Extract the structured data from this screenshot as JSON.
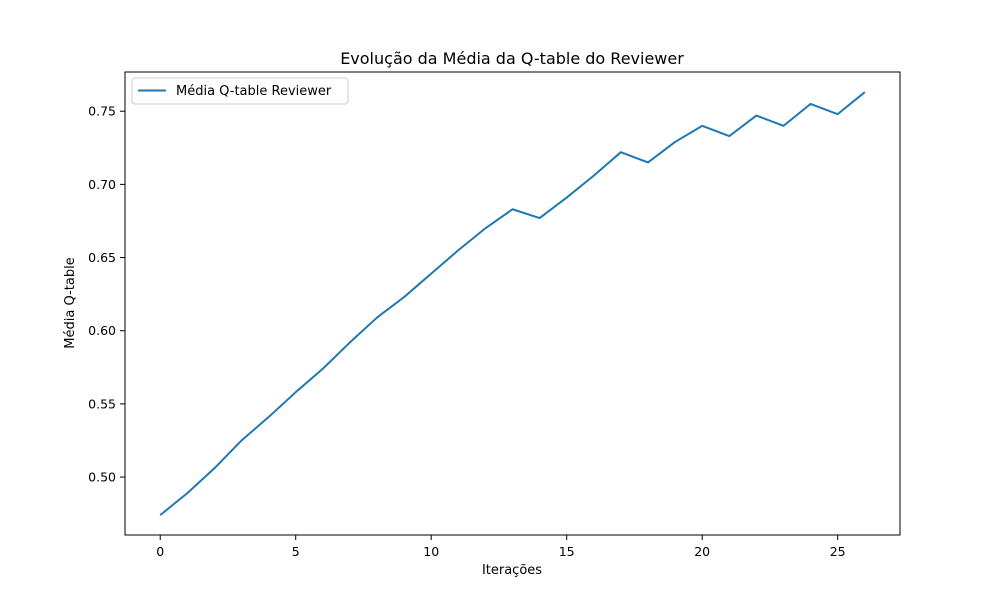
{
  "chart_data": {
    "type": "line",
    "title": "Evolução da Média da Q-table do Reviewer",
    "xlabel": "Iterações",
    "ylabel": "Média Q-table",
    "xlim": [
      -1.3,
      27.3
    ],
    "ylim": [
      0.4604,
      0.7768
    ],
    "x_ticks": [
      0,
      5,
      10,
      15,
      20,
      25
    ],
    "x_tick_labels": [
      "0",
      "5",
      "10",
      "15",
      "20",
      "25"
    ],
    "y_ticks": [
      0.5,
      0.55,
      0.6,
      0.65,
      0.7,
      0.75
    ],
    "y_tick_labels": [
      "0.50",
      "0.55",
      "0.60",
      "0.65",
      "0.70",
      "0.75"
    ],
    "grid": false,
    "legend_position": "upper left",
    "series": [
      {
        "name": "Média Q-table Reviewer",
        "color": "#1f77b4",
        "x": [
          0,
          1,
          2,
          3,
          4,
          5,
          6,
          7,
          8,
          9,
          10,
          11,
          12,
          13,
          14,
          15,
          16,
          17,
          18,
          19,
          20,
          21,
          22,
          23,
          24,
          25,
          26
        ],
        "y": [
          0.474,
          0.489,
          0.506,
          0.525,
          0.541,
          0.558,
          0.574,
          0.592,
          0.609,
          0.623,
          0.639,
          0.655,
          0.67,
          0.683,
          0.677,
          0.691,
          0.706,
          0.722,
          0.715,
          0.729,
          0.74,
          0.733,
          0.747,
          0.74,
          0.755,
          0.748,
          0.763
        ]
      }
    ]
  }
}
